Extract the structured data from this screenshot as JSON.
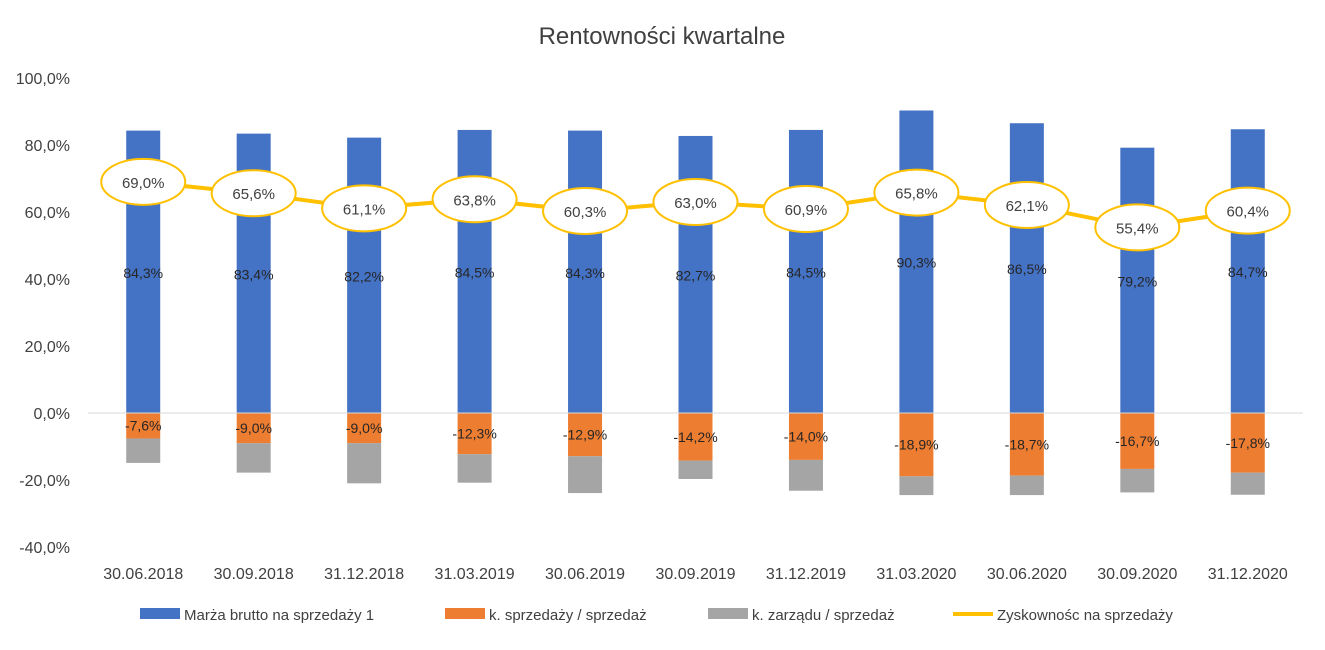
{
  "chart_data": {
    "type": "bar",
    "title": "Rentowności kwartalne",
    "categories": [
      "30.06.2018",
      "30.09.2018",
      "31.12.2018",
      "31.03.2019",
      "30.06.2019",
      "30.09.2019",
      "31.12.2019",
      "31.03.2020",
      "30.06.2020",
      "30.09.2020",
      "31.12.2020"
    ],
    "ylim": [
      -40,
      100
    ],
    "yticks": [
      100,
      80,
      60,
      40,
      20,
      0,
      -20,
      -40
    ],
    "ytick_labels": [
      "100,0%",
      "80,0%",
      "60,0%",
      "40,0%",
      "20,0%",
      "0,0%",
      "-20,0%",
      "-40,0%"
    ],
    "gridlines": false,
    "legend_position": "bottom",
    "series": [
      {
        "name": "Marża brutto na sprzedaży 1",
        "kind": "bar",
        "color": "#4472C4",
        "values": [
          84.3,
          83.4,
          82.2,
          84.5,
          84.3,
          82.7,
          84.5,
          90.3,
          86.5,
          79.2,
          84.7
        ],
        "labels": [
          "84,3%",
          "83,4%",
          "82,2%",
          "84,5%",
          "84,3%",
          "82,7%",
          "84,5%",
          "90,3%",
          "86,5%",
          "79,2%",
          "84,7%"
        ]
      },
      {
        "name": "k. sprzedaży / sprzedaż",
        "kind": "bar",
        "color": "#ED7D31",
        "values": [
          -7.6,
          -9.0,
          -9.0,
          -12.3,
          -12.9,
          -14.2,
          -14.0,
          -18.9,
          -18.7,
          -16.7,
          -17.8
        ],
        "labels": [
          "-7,6%",
          "-9,0%",
          "-9,0%",
          "-12,3%",
          "-12,9%",
          "-14,2%",
          "-14,0%",
          "-18,9%",
          "-18,7%",
          "-16,7%",
          "-17,8%"
        ]
      },
      {
        "name": "k. zarządu / sprzedaż",
        "kind": "bar",
        "color": "#A5A5A5",
        "values": [
          -7.3,
          -8.8,
          -12.0,
          -8.5,
          -11.0,
          -5.5,
          -9.2,
          -5.6,
          -5.8,
          -7.0,
          -6.6
        ],
        "labels": []
      },
      {
        "name": "Zyskownośc na sprzedaży",
        "kind": "line",
        "color": "#FFC000",
        "values": [
          69.0,
          65.6,
          61.1,
          63.8,
          60.3,
          63.0,
          60.9,
          65.8,
          62.1,
          55.4,
          60.4
        ],
        "labels": [
          "69,0%",
          "65,6%",
          "61,1%",
          "63,8%",
          "60,3%",
          "63,0%",
          "60,9%",
          "65,8%",
          "62,1%",
          "55,4%",
          "60,4%"
        ]
      }
    ]
  }
}
